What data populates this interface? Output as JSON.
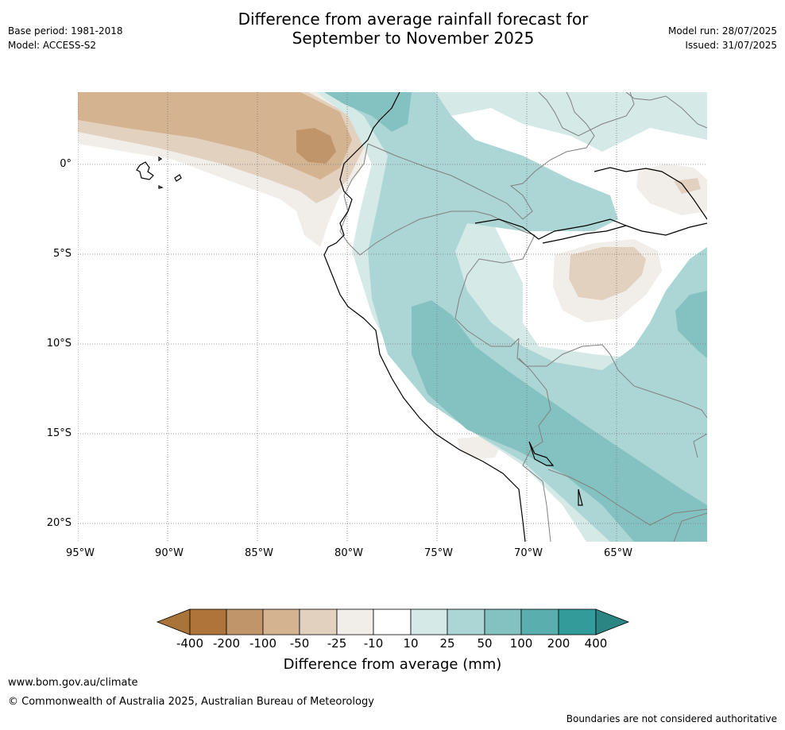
{
  "header": {
    "title_line1": "Difference from average rainfall forecast for",
    "title_line2": "September to November 2025",
    "base_period": "Base period: 1981-2018",
    "model": "Model: ACCESS-S2",
    "model_run": "Model run: 28/07/2025",
    "issued": "Issued: 31/07/2025"
  },
  "map": {
    "lat_labels": [
      "0°",
      "5°S",
      "10°S",
      "15°S",
      "20°S"
    ],
    "lon_labels": [
      "95°W",
      "90°W",
      "85°W",
      "80°W",
      "75°W",
      "70°W",
      "65°W"
    ]
  },
  "legend": {
    "title": "Difference from average (mm)",
    "labels": [
      "-400",
      "-200",
      "-100",
      "-50",
      "-25",
      "-10",
      "10",
      "25",
      "50",
      "100",
      "200",
      "400"
    ],
    "colors": [
      "#a97439",
      "#ae743a",
      "#c1956a",
      "#d4b391",
      "#e3d1c0",
      "#f1eee9",
      "#ffffff",
      "#d5e9e7",
      "#acd6d5",
      "#84c2c1",
      "#5aafae",
      "#339c9a",
      "#2a8583"
    ]
  },
  "footer": {
    "url": "www.bom.gov.au/climate",
    "copyright": "© Commonwealth of Australia 2025, Australian Bureau of Meteorology",
    "disclaimer": "Boundaries are not considered authoritative"
  }
}
